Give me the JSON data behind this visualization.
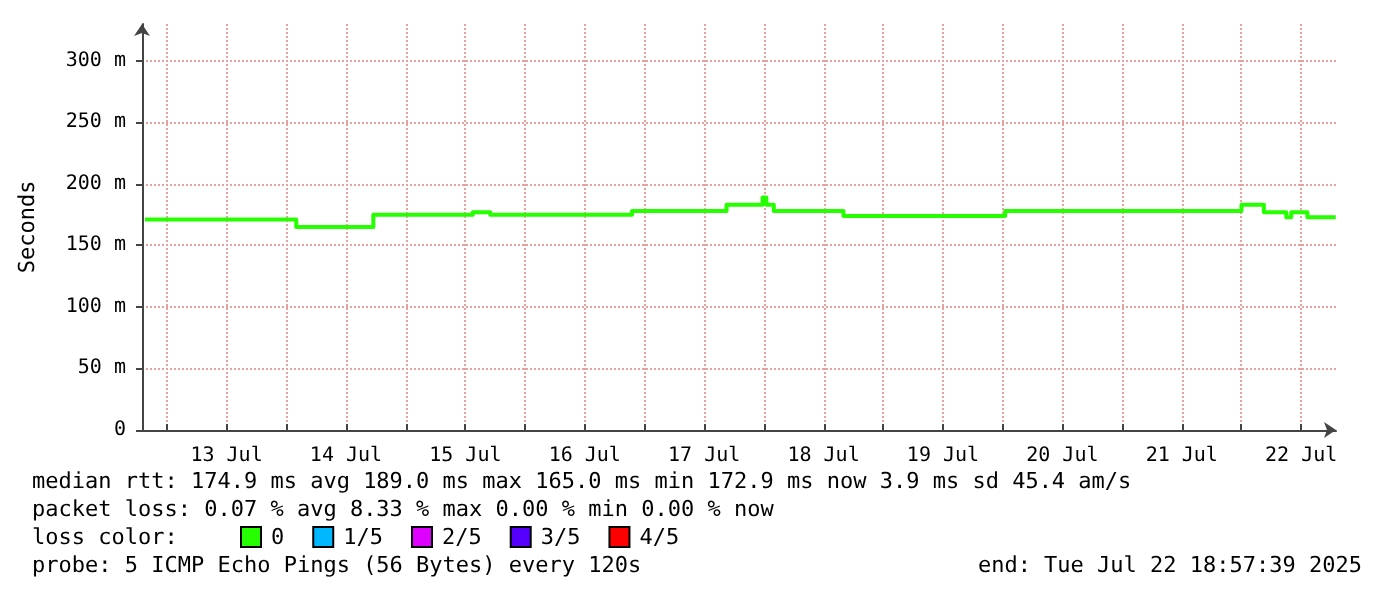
{
  "chart_data": {
    "type": "step",
    "ylabel": "Seconds",
    "legend_title": "loss color:",
    "legend": "bottom left",
    "grid": true,
    "marker": "none",
    "xlim": [
      "2025-07-12T19:00",
      "2025-07-22T19:00"
    ],
    "xticks": [
      {
        "value": "2025-07-13T00:00",
        "label": null
      },
      {
        "value": "2025-07-13T12:00",
        "label": "13 Jul"
      },
      {
        "value": "2025-07-14T00:00",
        "label": null
      },
      {
        "value": "2025-07-14T12:00",
        "label": "14 Jul"
      },
      {
        "value": "2025-07-15T00:00",
        "label": null
      },
      {
        "value": "2025-07-15T12:00",
        "label": "15 Jul"
      },
      {
        "value": "2025-07-16T00:00",
        "label": null
      },
      {
        "value": "2025-07-16T12:00",
        "label": "16 Jul"
      },
      {
        "value": "2025-07-17T00:00",
        "label": null
      },
      {
        "value": "2025-07-17T12:00",
        "label": "17 Jul"
      },
      {
        "value": "2025-07-18T00:00",
        "label": null
      },
      {
        "value": "2025-07-18T12:00",
        "label": "18 Jul"
      },
      {
        "value": "2025-07-19T00:00",
        "label": null
      },
      {
        "value": "2025-07-19T12:00",
        "label": "19 Jul"
      },
      {
        "value": "2025-07-20T00:00",
        "label": null
      },
      {
        "value": "2025-07-20T12:00",
        "label": "20 Jul"
      },
      {
        "value": "2025-07-21T00:00",
        "label": null
      },
      {
        "value": "2025-07-21T12:00",
        "label": "21 Jul"
      },
      {
        "value": "2025-07-22T00:00",
        "label": null
      },
      {
        "value": "2025-07-22T12:00",
        "label": "22 Jul"
      }
    ],
    "ylim": [
      0,
      330
    ],
    "yticks": [
      0,
      {
        "value": 50,
        "label": "50 m"
      },
      {
        "value": 100,
        "label": "100 m"
      },
      {
        "value": 150,
        "label": "150 m"
      },
      {
        "value": 200,
        "label": "200 m"
      },
      {
        "value": 250,
        "label": "250 m"
      },
      {
        "value": 300,
        "label": "300 m"
      }
    ],
    "series": [
      {
        "name": "0",
        "color": "#26ff00",
        "x": [
          "2025-07-12T19:36",
          "2025-07-14T02:00",
          "2025-07-14T17:30",
          "2025-07-15T13:30",
          "2025-07-15T17:00",
          "2025-07-16T21:30",
          "2025-07-17T16:30",
          "2025-07-17T23:45",
          "2025-07-18T00:30",
          "2025-07-18T02:00",
          "2025-07-18T16:00",
          "2025-07-20T00:30",
          "2025-07-22T00:00",
          "2025-07-22T04:30",
          "2025-07-22T09:00",
          "2025-07-22T10:00",
          "2025-07-22T13:15",
          "2025-07-22T18:57"
        ],
        "values": [
          171,
          165,
          175,
          177,
          175,
          178,
          183,
          189,
          183,
          178,
          174,
          178,
          183,
          177,
          173,
          177,
          173,
          173
        ]
      },
      {
        "name": "1/5",
        "color": "#00b8ff"
      },
      {
        "name": "2/5",
        "color": "#dd00ff"
      },
      {
        "name": "3/5",
        "color": "#5500ff"
      },
      {
        "name": "4/5",
        "color": "#ff0000"
      }
    ],
    "annotations": [
      "median rtt: 174.9 ms avg 189.0 ms max 165.0 ms min 172.9 ms now 3.9 ms sd 45.4 am/s",
      "packet loss: 0.07 % avg 8.33 % max 0.00 % min 0.00 % now",
      "probe: 5 ICMP Echo Pings (56 Bytes) every 120s",
      "end: Tue Jul 22 18:57:39 2025"
    ]
  }
}
